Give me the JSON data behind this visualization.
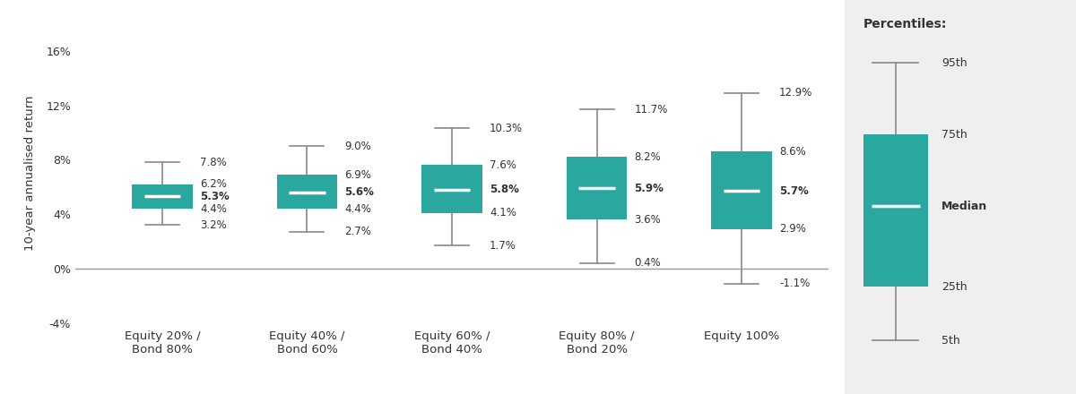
{
  "categories": [
    "Equity 20% /\nBond 80%",
    "Equity 40% /\nBond 60%",
    "Equity 60% /\nBond 40%",
    "Equity 80% /\nBond 20%",
    "Equity 100%"
  ],
  "p5": [
    3.2,
    2.7,
    1.7,
    0.4,
    -1.1
  ],
  "p25": [
    4.4,
    4.4,
    4.1,
    3.6,
    2.9
  ],
  "median": [
    5.3,
    5.6,
    5.8,
    5.9,
    5.7
  ],
  "p75": [
    6.2,
    6.9,
    7.6,
    8.2,
    8.6
  ],
  "p95": [
    7.8,
    9.0,
    10.3,
    11.7,
    12.9
  ],
  "p5_labels": [
    "3.2%",
    "2.7%",
    "1.7%",
    "0.4%",
    "-1.1%"
  ],
  "p25_labels": [
    "4.4%",
    "4.4%",
    "4.1%",
    "3.6%",
    "2.9%"
  ],
  "median_labels": [
    "5.3%",
    "5.6%",
    "5.8%",
    "5.9%",
    "5.7%"
  ],
  "p75_labels": [
    "6.2%",
    "6.9%",
    "7.6%",
    "8.2%",
    "8.6%"
  ],
  "p95_labels": [
    "7.8%",
    "9.0%",
    "10.3%",
    "11.7%",
    "12.9%"
  ],
  "box_color": "#2aa8a0",
  "whisker_color": "#888888",
  "median_line_color": "#ffffff",
  "ylabel": "10-year annualised return",
  "ylim": [
    -4,
    18
  ],
  "yticks": [
    -4,
    0,
    4,
    8,
    12,
    16
  ],
  "ytick_labels": [
    "-4%",
    "0%",
    "4%",
    "8%",
    "12%",
    "16%"
  ],
  "bar_width": 0.42,
  "background_color": "#ffffff",
  "legend_bg_color": "#efefef",
  "font_color": "#333333",
  "legend_title": "Percentiles:",
  "legend_items": [
    "95th",
    "75th",
    "Median",
    "25th",
    "5th"
  ],
  "legend_ylim": [
    -4,
    18
  ],
  "legend_p5": -1.0,
  "legend_p25": 2.0,
  "legend_median": 6.5,
  "legend_p75": 10.5,
  "legend_p95": 14.5
}
